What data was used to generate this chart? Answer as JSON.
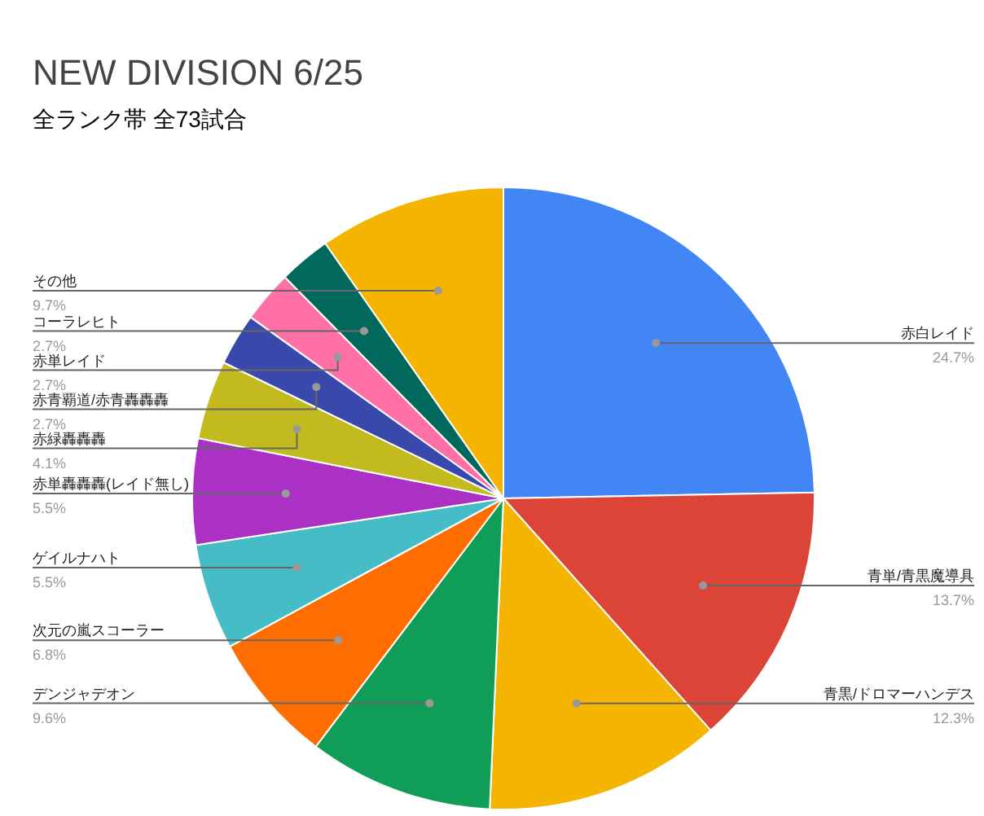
{
  "chart_data": {
    "type": "pie",
    "title": "NEW DIVISION 6/25",
    "subtitle": "全ランク帯 全73試合",
    "categories": [
      "赤白レイド",
      "青単/青黒魔導具",
      "青黒/ドロマーハンデス",
      "デンジャデオン",
      "次元の嵐スコーラー",
      "ゲイルナハト",
      "赤単轟轟轟(レイド無し)",
      "赤緑轟轟轟",
      "赤青覇道/赤青轟轟轟",
      "赤単レイド",
      "コーラレヒト",
      "その他"
    ],
    "values": [
      24.7,
      13.7,
      12.3,
      9.6,
      6.8,
      5.5,
      5.5,
      4.1,
      2.7,
      2.7,
      2.7,
      9.7
    ],
    "value_labels": [
      "24.7%",
      "13.7%",
      "12.3%",
      "9.6%",
      "6.8%",
      "5.5%",
      "5.5%",
      "4.1%",
      "2.7%",
      "2.7%",
      "2.7%",
      "9.7%"
    ],
    "colors": [
      "#4285f4",
      "#db4437",
      "#f4b400",
      "#0f9d58",
      "#ff6d00",
      "#46bdc6",
      "#ab30c4",
      "#c2ba1f",
      "#3949ab",
      "#ff70a6",
      "#00695c",
      "#f4b400"
    ]
  }
}
